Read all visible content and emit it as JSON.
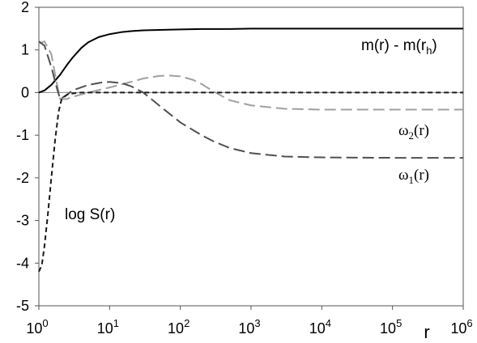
{
  "chart_data": {
    "type": "line",
    "title": "",
    "xlabel": "r",
    "ylabel": "",
    "x_scale": "log10",
    "xlim": [
      1,
      1000000
    ],
    "ylim": [
      -5,
      2
    ],
    "grid": false,
    "x_ticks": [
      {
        "value": 1,
        "base": "10",
        "exp": "0"
      },
      {
        "value": 10,
        "base": "10",
        "exp": "1"
      },
      {
        "value": 100,
        "base": "10",
        "exp": "2"
      },
      {
        "value": 1000,
        "base": "10",
        "exp": "3"
      },
      {
        "value": 10000,
        "base": "10",
        "exp": "4"
      },
      {
        "value": 100000,
        "base": "10",
        "exp": "5"
      },
      {
        "value": 1000000,
        "base": "10",
        "exp": "6"
      }
    ],
    "y_ticks": [
      "-5",
      "-4",
      "-3",
      "-2",
      "-1",
      "0",
      "1",
      "2"
    ],
    "series": [
      {
        "name": "m(r) - m(r_h)",
        "label_main": "m(r) - m(r",
        "label_sub": "h",
        "label_tail": ")",
        "color": "#000000",
        "dash": "solid",
        "x": [
          1,
          1.2,
          1.5,
          2,
          2.5,
          3,
          4,
          5,
          7,
          10,
          15,
          20,
          30,
          50,
          100,
          200,
          500,
          1000,
          10000,
          100000,
          1000000
        ],
        "y": [
          0,
          0.05,
          0.18,
          0.42,
          0.65,
          0.82,
          1.05,
          1.18,
          1.3,
          1.37,
          1.42,
          1.44,
          1.46,
          1.47,
          1.48,
          1.49,
          1.49,
          1.5,
          1.5,
          1.5,
          1.5
        ]
      },
      {
        "name": "ω2(r)",
        "label_main": "ω",
        "label_sub": "2",
        "label_tail": "(r)",
        "color": "#a0a0a0",
        "dash": "long",
        "x": [
          1,
          1.2,
          1.5,
          1.8,
          2,
          2.5,
          3,
          5,
          10,
          20,
          30,
          50,
          70,
          100,
          150,
          200,
          300,
          500,
          1000,
          3000,
          10000,
          100000,
          1000000
        ],
        "y": [
          1.15,
          1.2,
          0.9,
          0.2,
          -0.15,
          -0.15,
          -0.1,
          0,
          0.12,
          0.25,
          0.33,
          0.39,
          0.4,
          0.38,
          0.3,
          0.2,
          0.02,
          -0.18,
          -0.3,
          -0.38,
          -0.4,
          -0.4,
          -0.4
        ]
      },
      {
        "name": "ω1(r)",
        "label_main": "ω",
        "label_sub": "1",
        "label_tail": "(r)",
        "color": "#505050",
        "dash": "long",
        "x": [
          1,
          1.2,
          1.5,
          1.8,
          2,
          2.5,
          3,
          5,
          8,
          10,
          15,
          20,
          30,
          50,
          100,
          200,
          300,
          500,
          1000,
          3000,
          10000,
          100000,
          1000000
        ],
        "y": [
          1.2,
          1.1,
          0.6,
          0.1,
          -0.15,
          -0.05,
          0.05,
          0.18,
          0.24,
          0.25,
          0.22,
          0.15,
          0,
          -0.3,
          -0.7,
          -1.0,
          -1.15,
          -1.3,
          -1.42,
          -1.5,
          -1.52,
          -1.53,
          -1.53
        ]
      },
      {
        "name": "log S(r)",
        "label_main": "log S(r)",
        "label_sub": "",
        "label_tail": "",
        "color": "#1a1a1a",
        "dash": "short",
        "x": [
          1,
          1.1,
          1.2,
          1.35,
          1.5,
          1.7,
          1.9,
          2.1,
          2.5,
          3,
          4,
          10,
          100,
          1000,
          10000,
          100000,
          1000000
        ],
        "y": [
          -4.2,
          -4.05,
          -3.6,
          -2.8,
          -2.0,
          -1.1,
          -0.45,
          -0.15,
          -0.05,
          -0.02,
          0,
          0,
          0,
          0,
          0,
          0,
          0
        ]
      }
    ]
  }
}
